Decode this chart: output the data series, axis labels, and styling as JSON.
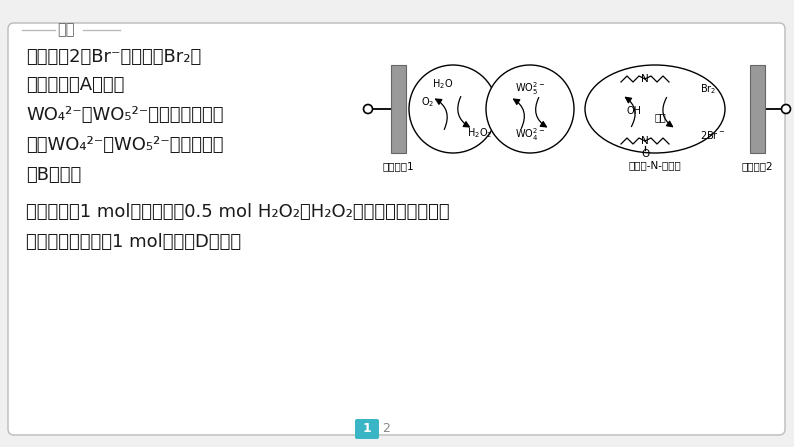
{
  "bg_color": "#f0f0f0",
  "card_bg": "#ffffff",
  "card_edge": "#bbbbbb",
  "title_label": "解析",
  "title_color": "#666666",
  "text_color": "#1a1a1a",
  "line1": "惰性电杗2上Br⁻被氧化为Br₂，",
  "line2": "为阳极，故A正确；",
  "line3": "WO₄²⁻、WO₅²⁻循环反应，反应",
  "line4": "前后WO₄²⁻、WO₅²⁻数量不变，",
  "line5": "故B正确；",
  "line6": "外电路通过1 mol电子时生扙0.5 mol H₂O₂，H₂O₂最终生成水，根据氧",
  "line7": "原子守恒，可得到1 mol水，故D正确。",
  "page_indicator_color": "#3ab5c6",
  "page_num": "1",
  "page_num2": "2"
}
